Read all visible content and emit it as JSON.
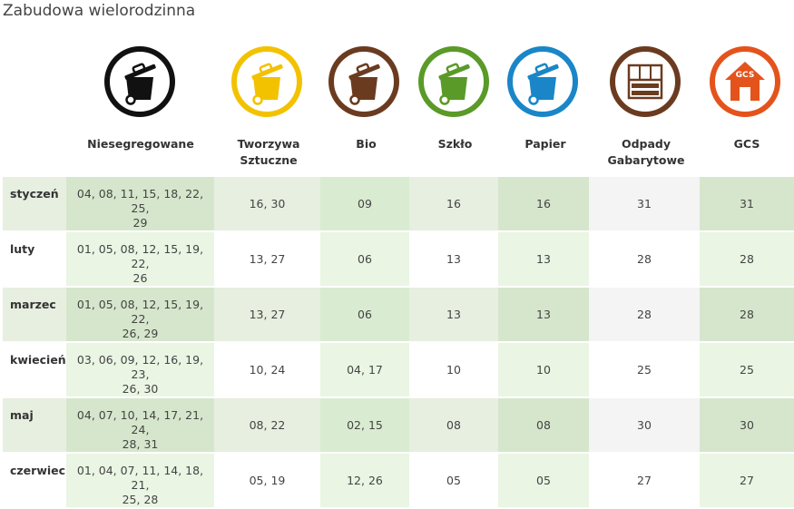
{
  "title": "Zabudowa wielorodzinna",
  "categories": [
    {
      "key": "ns",
      "label_lines": [
        "Niesegregowane",
        ""
      ],
      "icon": "bin-icon",
      "ring": "#111111",
      "fill": "#111111"
    },
    {
      "key": "tw",
      "label_lines": [
        "Tworzywa",
        "Sztuczne"
      ],
      "icon": "bin-icon",
      "ring": "#f2c200",
      "fill": "#f2c200"
    },
    {
      "key": "bio",
      "label_lines": [
        "Bio",
        ""
      ],
      "icon": "bin-icon",
      "ring": "#6b3b20",
      "fill": "#6b3b20"
    },
    {
      "key": "sz",
      "label_lines": [
        "Szkło",
        ""
      ],
      "icon": "bin-icon",
      "ring": "#5a9a28",
      "fill": "#5a9a28"
    },
    {
      "key": "pa",
      "label_lines": [
        "Papier",
        ""
      ],
      "icon": "bin-icon",
      "ring": "#1a86c8",
      "fill": "#1a86c8"
    },
    {
      "key": "og",
      "label_lines": [
        "Odpady",
        "Gabarytowe"
      ],
      "icon": "furniture-icon",
      "ring": "#6b3b20",
      "fill": "#6b3b20"
    },
    {
      "key": "gcs",
      "label_lines": [
        "GCS",
        ""
      ],
      "icon": "house-icon",
      "ring": "#e4531c",
      "fill": "#e4531c",
      "badge": "GCS"
    }
  ],
  "rows": [
    {
      "month": "styczeń",
      "ns": [
        "04, 08, 11, 15, 18, 22, 25,",
        "29"
      ],
      "tw": "16, 30",
      "bio": "09",
      "sz": "16",
      "pa": "16",
      "og": "31",
      "gcs": "31"
    },
    {
      "month": "luty",
      "ns": [
        "01, 05, 08, 12, 15, 19, 22,",
        "26"
      ],
      "tw": "13, 27",
      "bio": "06",
      "sz": "13",
      "pa": "13",
      "og": "28",
      "gcs": "28"
    },
    {
      "month": "marzec",
      "ns": [
        "01, 05, 08, 12, 15, 19, 22,",
        "26, 29"
      ],
      "tw": "13, 27",
      "bio": "06",
      "sz": "13",
      "pa": "13",
      "og": "28",
      "gcs": "28"
    },
    {
      "month": "kwiecień",
      "ns": [
        "03, 06, 09, 12, 16, 19, 23,",
        "26, 30"
      ],
      "tw": "10, 24",
      "bio": "04, 17",
      "sz": "10",
      "pa": "10",
      "og": "25",
      "gcs": "25"
    },
    {
      "month": "maj",
      "ns": [
        "04, 07, 10, 14, 17, 21, 24,",
        "28, 31"
      ],
      "tw": "08, 22",
      "bio": "02, 15",
      "sz": "08",
      "pa": "08",
      "og": "30",
      "gcs": "30"
    },
    {
      "month": "czerwiec",
      "ns": [
        "01, 04, 07, 11, 14, 18, 21,",
        "25, 28"
      ],
      "tw": "05, 19",
      "bio": "12, 26",
      "sz": "05",
      "pa": "05",
      "og": "27",
      "gcs": "27"
    }
  ]
}
